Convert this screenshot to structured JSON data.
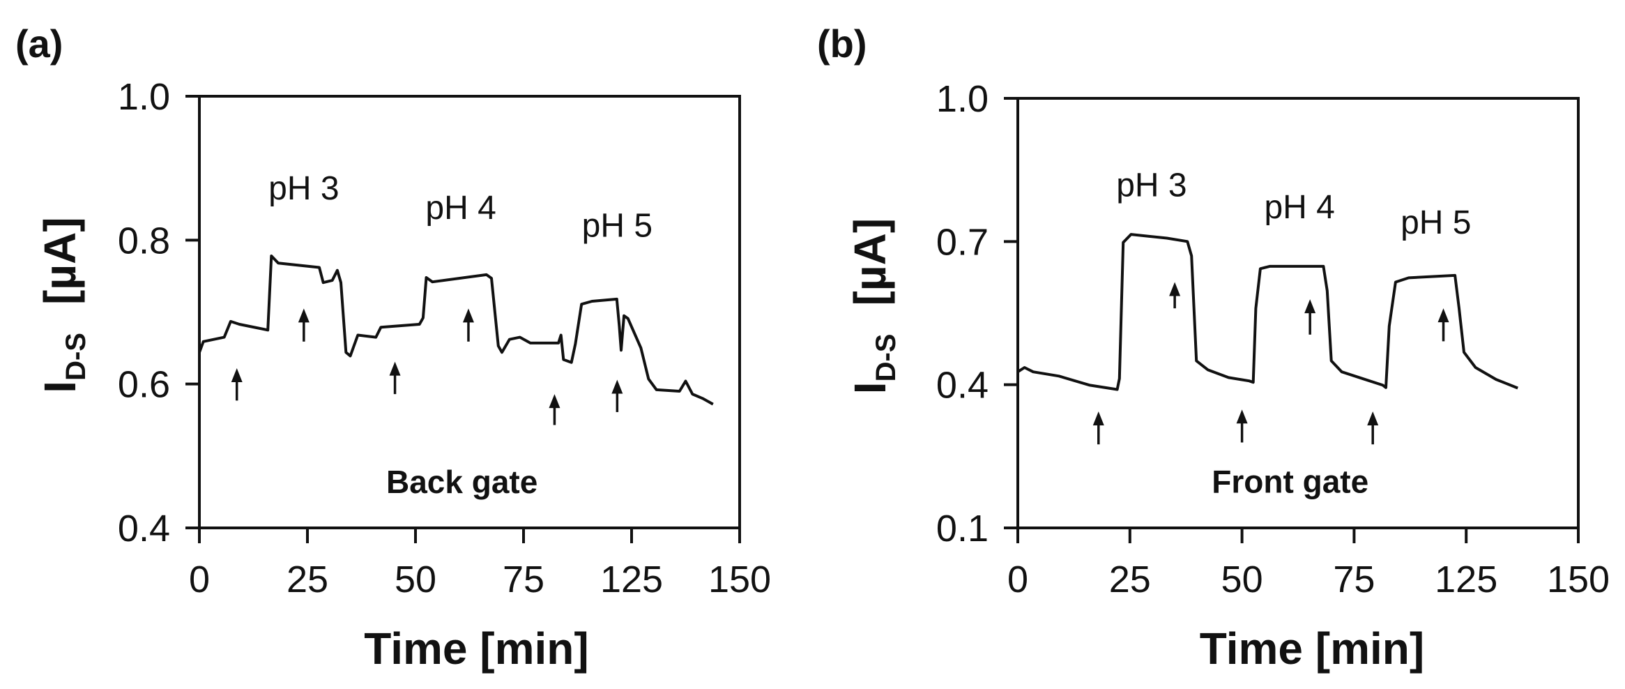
{
  "chart_data": [
    {
      "type": "line",
      "panel_label": "(a)",
      "xlabel": "Time   [min]",
      "ylabel": {
        "main": "I",
        "sub": "D-S",
        "unit": "[µA]"
      },
      "xlim": [
        0,
        150
      ],
      "ylim": [
        0.4,
        1.0
      ],
      "xtick_labels": [
        "0",
        "25",
        "50",
        "75",
        "125",
        "150"
      ],
      "yticks": [
        0.4,
        0.6,
        0.8,
        1.0
      ],
      "ytick_labels": [
        "0.4",
        "0.6",
        "0.8",
        "1.0"
      ],
      "grid": false,
      "line_color": "#111111",
      "gate_label": {
        "text": "Back gate",
        "x": 72.9,
        "y": 0.464
      },
      "annotations": [
        {
          "text": "pH 3",
          "x": 29.0,
          "y": 0.872
        },
        {
          "text": "pH 4",
          "x": 72.6,
          "y": 0.845
        },
        {
          "text": "pH 5",
          "x": 116.0,
          "y": 0.82
        }
      ],
      "arrows": [
        {
          "x": 10.4,
          "y_tail": 0.577,
          "y_tip": 0.622
        },
        {
          "x": 29.0,
          "y_tail": 0.659,
          "y_tip": 0.705
        },
        {
          "x": 54.3,
          "y_tail": 0.586,
          "y_tip": 0.631
        },
        {
          "x": 74.7,
          "y_tail": 0.659,
          "y_tip": 0.705
        },
        {
          "x": 98.6,
          "y_tail": 0.543,
          "y_tip": 0.586
        },
        {
          "x": 116.0,
          "y_tail": 0.561,
          "y_tip": 0.606
        }
      ],
      "points": [
        [
          0,
          0.644
        ],
        [
          1.1,
          0.659
        ],
        [
          6.9,
          0.665
        ],
        [
          8.7,
          0.687
        ],
        [
          11.1,
          0.683
        ],
        [
          19.0,
          0.675
        ],
        [
          20.0,
          0.778
        ],
        [
          21.9,
          0.768
        ],
        [
          33.3,
          0.762
        ],
        [
          34.4,
          0.741
        ],
        [
          36.9,
          0.744
        ],
        [
          38.3,
          0.758
        ],
        [
          39.3,
          0.741
        ],
        [
          40.7,
          0.644
        ],
        [
          41.9,
          0.639
        ],
        [
          44.0,
          0.668
        ],
        [
          49.0,
          0.665
        ],
        [
          50.4,
          0.679
        ],
        [
          61.1,
          0.683
        ],
        [
          62.1,
          0.692
        ],
        [
          63.0,
          0.748
        ],
        [
          64.7,
          0.742
        ],
        [
          79.7,
          0.752
        ],
        [
          81.1,
          0.747
        ],
        [
          83.0,
          0.653
        ],
        [
          84.0,
          0.644
        ],
        [
          86.1,
          0.662
        ],
        [
          89.0,
          0.665
        ],
        [
          91.9,
          0.657
        ],
        [
          99.7,
          0.657
        ],
        [
          100.4,
          0.668
        ],
        [
          101.1,
          0.634
        ],
        [
          103.3,
          0.63
        ],
        [
          104.4,
          0.656
        ],
        [
          106.1,
          0.711
        ],
        [
          109.0,
          0.715
        ],
        [
          115.9,
          0.718
        ],
        [
          116.6,
          0.68
        ],
        [
          117.1,
          0.647
        ],
        [
          117.9,
          0.695
        ],
        [
          119.0,
          0.691
        ],
        [
          122.6,
          0.65
        ],
        [
          124.7,
          0.607
        ],
        [
          126.9,
          0.592
        ],
        [
          133.3,
          0.59
        ],
        [
          135.0,
          0.604
        ],
        [
          136.9,
          0.586
        ],
        [
          139.7,
          0.58
        ],
        [
          142.6,
          0.572
        ]
      ]
    },
    {
      "type": "line",
      "panel_label": "(b)",
      "xlabel": "Time   [min]",
      "ylabel": {
        "main": "I",
        "sub": "D-S",
        "unit": "[µA]"
      },
      "xlim": [
        0,
        150
      ],
      "ylim": [
        0.1,
        1.0
      ],
      "xtick_labels": [
        "0",
        "25",
        "50",
        "75",
        "125",
        "150"
      ],
      "yticks": [
        0.1,
        0.4,
        0.7,
        1.0
      ],
      "ytick_labels": [
        "0.1",
        "0.4",
        "0.7",
        "1.0"
      ],
      "grid": false,
      "line_color": "#111111",
      "gate_label": {
        "text": "Front gate",
        "x": 72.9,
        "y": 0.197
      },
      "annotations": [
        {
          "text": "pH 3",
          "x": 35.8,
          "y": 0.818
        },
        {
          "text": "pH 4",
          "x": 75.4,
          "y": 0.772
        },
        {
          "text": "pH 5",
          "x": 111.9,
          "y": 0.74
        }
      ],
      "arrows": [
        {
          "x": 21.6,
          "y_tail": 0.275,
          "y_tip": 0.344
        },
        {
          "x": 42.0,
          "y_tail": 0.56,
          "y_tip": 0.615
        },
        {
          "x": 60.0,
          "y_tail": 0.279,
          "y_tip": 0.348
        },
        {
          "x": 78.2,
          "y_tail": 0.505,
          "y_tip": 0.579
        },
        {
          "x": 95.0,
          "y_tail": 0.275,
          "y_tip": 0.344
        },
        {
          "x": 113.9,
          "y_tail": 0.491,
          "y_tip": 0.56
        }
      ],
      "points": [
        [
          0,
          0.427
        ],
        [
          1.8,
          0.436
        ],
        [
          4.1,
          0.427
        ],
        [
          11.0,
          0.418
        ],
        [
          19.3,
          0.399
        ],
        [
          26.6,
          0.39
        ],
        [
          27.2,
          0.413
        ],
        [
          28.2,
          0.698
        ],
        [
          30.3,
          0.715
        ],
        [
          39.9,
          0.707
        ],
        [
          45.4,
          0.7
        ],
        [
          46.5,
          0.67
        ],
        [
          47.8,
          0.45
        ],
        [
          50.9,
          0.431
        ],
        [
          56.4,
          0.415
        ],
        [
          61.9,
          0.408
        ],
        [
          63.0,
          0.405
        ],
        [
          63.7,
          0.56
        ],
        [
          64.9,
          0.643
        ],
        [
          67.4,
          0.648
        ],
        [
          81.8,
          0.648
        ],
        [
          82.8,
          0.597
        ],
        [
          83.9,
          0.45
        ],
        [
          86.7,
          0.427
        ],
        [
          92.2,
          0.413
        ],
        [
          97.7,
          0.399
        ],
        [
          98.5,
          0.394
        ],
        [
          99.4,
          0.523
        ],
        [
          101.1,
          0.615
        ],
        [
          104.6,
          0.624
        ],
        [
          117.0,
          0.629
        ],
        [
          118.1,
          0.56
        ],
        [
          119.4,
          0.468
        ],
        [
          122.5,
          0.436
        ],
        [
          128.0,
          0.411
        ],
        [
          133.8,
          0.393
        ]
      ]
    }
  ]
}
